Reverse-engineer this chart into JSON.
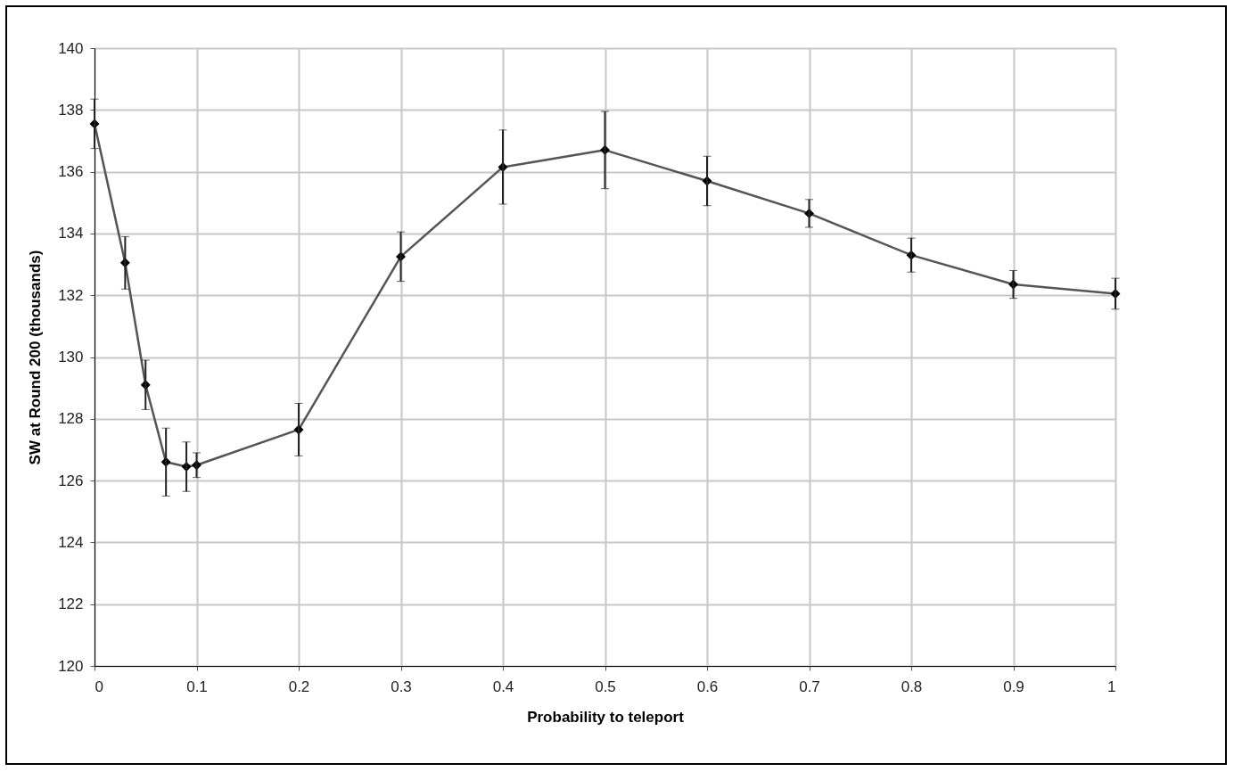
{
  "chart_data": {
    "type": "line",
    "xlabel": "Probability to teleport",
    "ylabel": "SW at Round 200 (thousands)",
    "x": [
      0,
      0.03,
      0.05,
      0.07,
      0.09,
      0.1,
      0.2,
      0.3,
      0.4,
      0.5,
      0.6,
      0.7,
      0.8,
      0.9,
      1
    ],
    "series": [
      {
        "color": "#555555",
        "values": [
          137.55,
          133.05,
          129.1,
          126.6,
          126.45,
          126.5,
          127.65,
          133.25,
          136.15,
          136.7,
          135.7,
          134.65,
          133.3,
          132.35,
          132.05
        ],
        "errors": [
          0.8,
          0.85,
          0.8,
          1.1,
          0.8,
          0.4,
          0.85,
          0.8,
          1.2,
          1.25,
          0.8,
          0.45,
          0.55,
          0.45,
          0.5
        ]
      }
    ],
    "xlim": [
      0,
      1
    ],
    "xticks": [
      0,
      0.1,
      0.2,
      0.3,
      0.4,
      0.5,
      0.6,
      0.7,
      0.8,
      0.9,
      1
    ],
    "ylim": [
      120,
      140
    ],
    "yticks": [
      120,
      122,
      124,
      126,
      128,
      130,
      132,
      134,
      136,
      138,
      140
    ],
    "grid": true,
    "marker": "diamond",
    "line_style": "solid"
  }
}
